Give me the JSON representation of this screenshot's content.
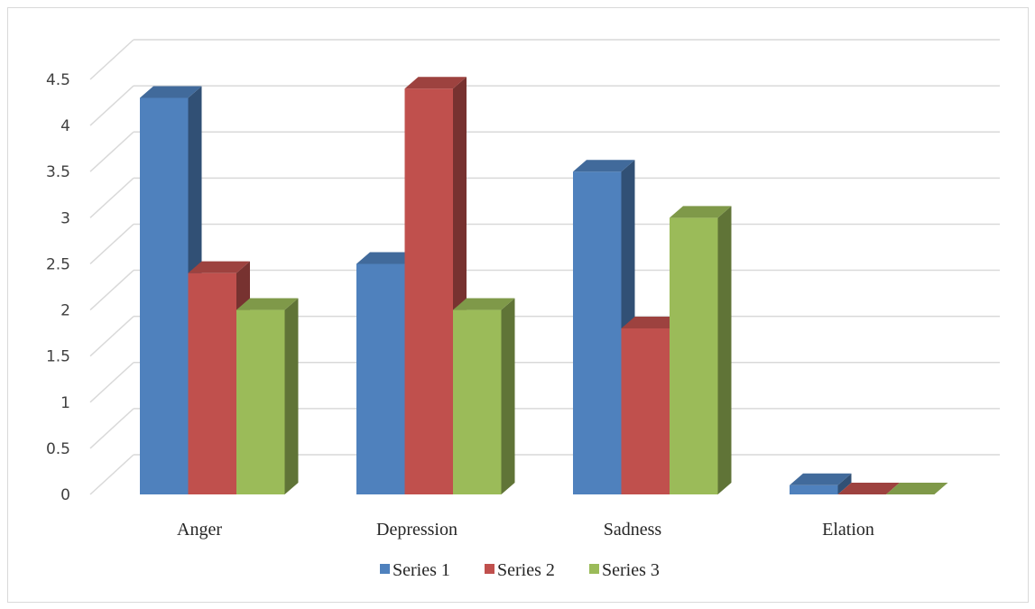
{
  "chart_data": {
    "type": "bar",
    "style": "3d-clustered-column",
    "categories": [
      "Anger",
      "Depression",
      "Sadness",
      "Elation"
    ],
    "series": [
      {
        "name": "Series 1",
        "values": [
          4.3,
          2.5,
          3.5,
          0.1
        ],
        "color": "#4f81bd"
      },
      {
        "name": "Series 2",
        "values": [
          2.4,
          4.4,
          1.8,
          0.0
        ],
        "color": "#c0504d"
      },
      {
        "name": "Series 3",
        "values": [
          2.0,
          2.0,
          3.0,
          0.0
        ],
        "color": "#9bbb59"
      }
    ],
    "y_ticks": [
      "0",
      "0.5",
      "1",
      "1.5",
      "2",
      "2.5",
      "3",
      "3.5",
      "4",
      "4.5"
    ],
    "ylim": [
      0,
      4.5
    ],
    "grid": true,
    "legend_position": "bottom",
    "title": "",
    "xlabel": "",
    "ylabel": ""
  }
}
